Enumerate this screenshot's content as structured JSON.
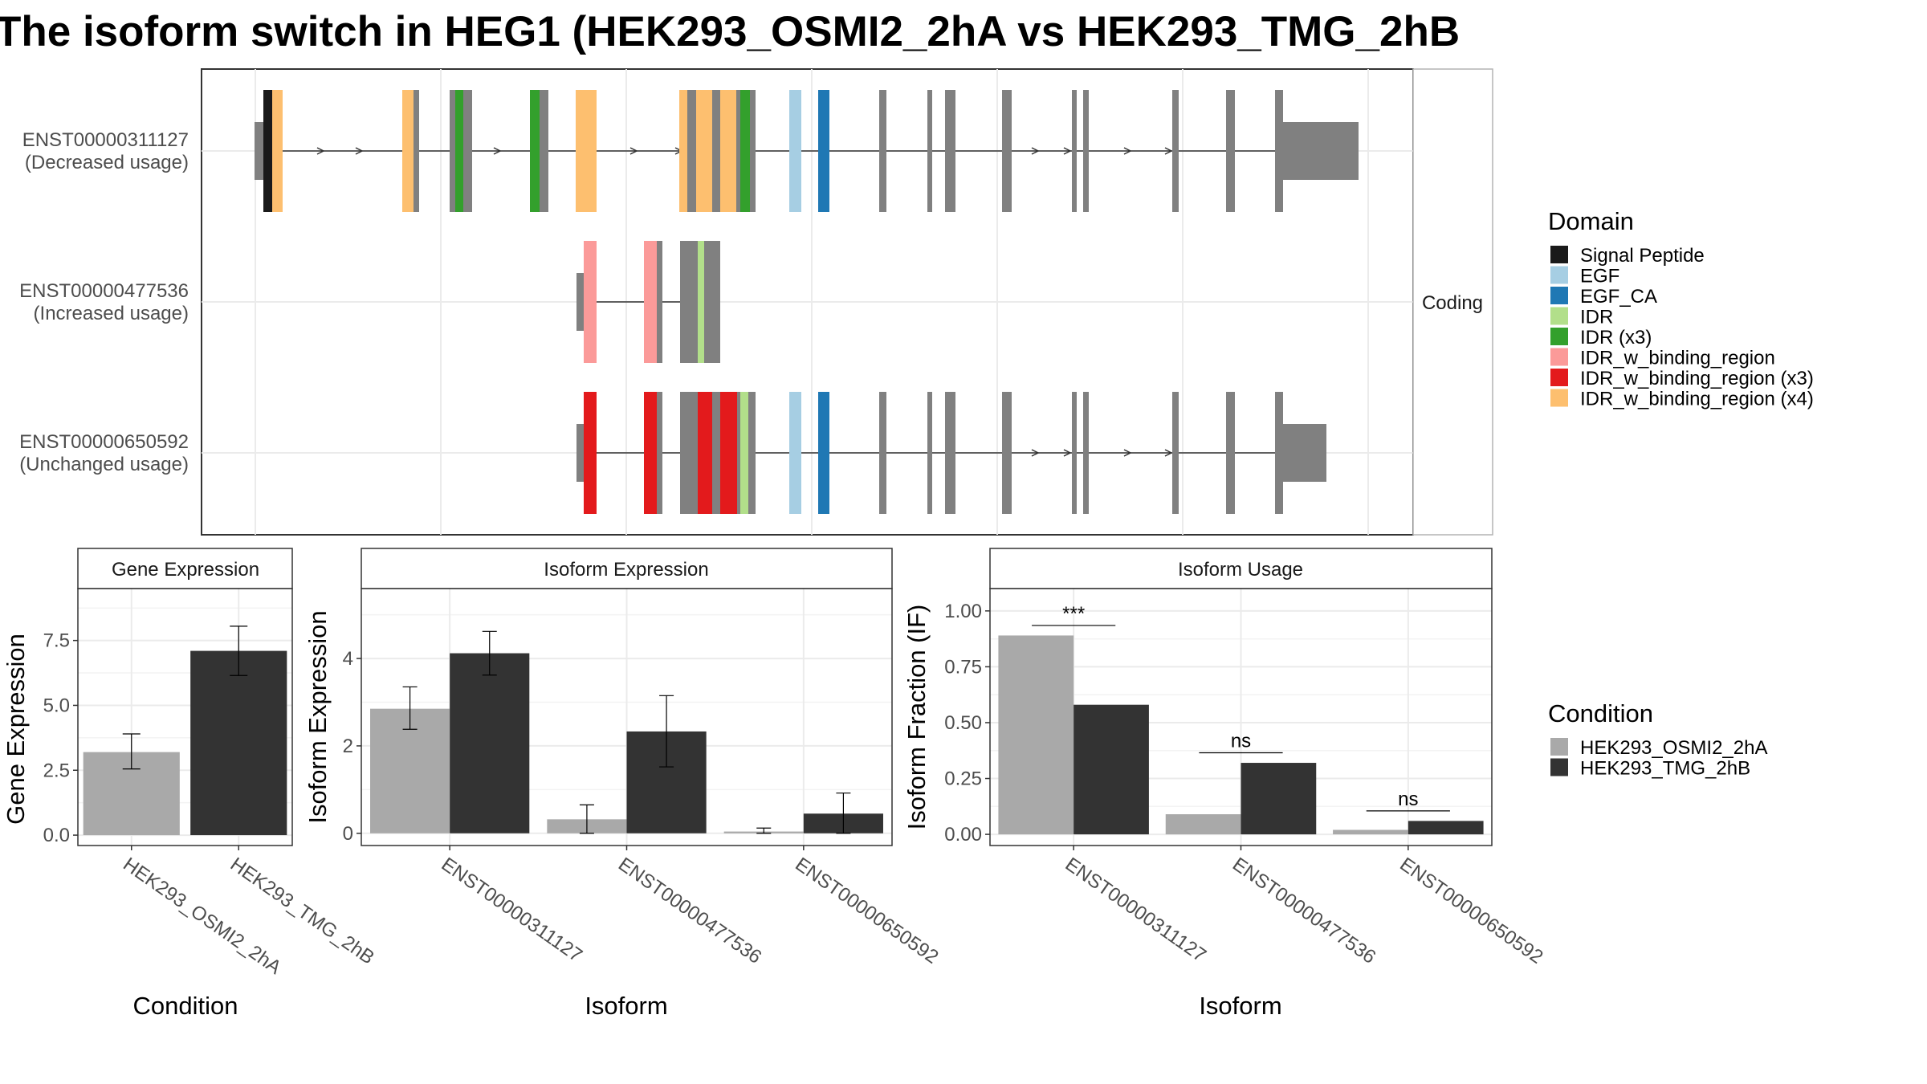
{
  "title": "The isoform switch in HEG1 (HEK293_OSMI2_2hA vs HEK293_TMG_2hB",
  "colors": {
    "cond_a": "#a9a9a9",
    "cond_b": "#333333",
    "exon_default": "#808080",
    "panel_border": "#333333",
    "grid": "#ebebeb",
    "strip_fill": "#ffffff"
  },
  "chart_data": [
    {
      "type": "transcript_structure",
      "strip_label": "Coding",
      "transcripts": [
        {
          "id": "ENST00000311127",
          "usage": "(Decreased usage)"
        },
        {
          "id": "ENST00000477536",
          "usage": "(Increased usage)"
        },
        {
          "id": "ENST00000650592",
          "usage": "(Unchanged usage)"
        }
      ],
      "legend": {
        "title": "Domain",
        "entries": [
          {
            "label": "Signal Peptide",
            "color": "#1a1a1a"
          },
          {
            "label": "EGF",
            "color": "#a6cee3"
          },
          {
            "label": "EGF_CA",
            "color": "#1f78b4"
          },
          {
            "label": "IDR",
            "color": "#b2df8a"
          },
          {
            "label": "IDR (x3)",
            "color": "#33a02c"
          },
          {
            "label": "IDR_w_binding_region",
            "color": "#fb9a99"
          },
          {
            "label": "IDR_w_binding_region (x3)",
            "color": "#e31a1c"
          },
          {
            "label": "IDR_w_binding_region (x4)",
            "color": "#fdbf6f"
          }
        ]
      }
    },
    {
      "type": "bar",
      "strip_label": "Gene Expression",
      "xlabel": "Condition",
      "ylabel": "Gene Expression",
      "categories": [
        "HEK293_OSMI2_2hA",
        "HEK293_TMG_2hB"
      ],
      "values": [
        3.2,
        7.1
      ],
      "errors_low": [
        2.55,
        6.15
      ],
      "errors_high": [
        3.9,
        8.05
      ],
      "ylim": [
        -0.4,
        9.5
      ],
      "yticks": [
        "0.0",
        "2.5",
        "5.0",
        "7.5"
      ]
    },
    {
      "type": "bar",
      "strip_label": "Isoform Expression",
      "xlabel": "Isoform",
      "ylabel": "Isoform Expression",
      "categories": [
        "ENST00000311127",
        "ENST00000477536",
        "ENST00000650592"
      ],
      "series": [
        {
          "name": "HEK293_OSMI2_2hA",
          "values": [
            2.85,
            0.32,
            0.04
          ],
          "err_low": [
            2.38,
            0.0,
            0.0
          ],
          "err_high": [
            3.35,
            0.65,
            0.12
          ]
        },
        {
          "name": "HEK293_TMG_2hB",
          "values": [
            4.12,
            2.33,
            0.45
          ],
          "err_low": [
            3.62,
            1.52,
            0.0
          ],
          "err_high": [
            4.62,
            3.15,
            0.92
          ]
        }
      ],
      "ylim": [
        -0.28,
        5.6
      ],
      "yticks": [
        "0",
        "2",
        "4"
      ]
    },
    {
      "type": "bar",
      "strip_label": "Isoform Usage",
      "xlabel": "Isoform",
      "ylabel": "Isoform Fraction (IF)",
      "categories": [
        "ENST00000311127",
        "ENST00000477536",
        "ENST00000650592"
      ],
      "series": [
        {
          "name": "HEK293_OSMI2_2hA",
          "values": [
            0.89,
            0.09,
            0.02
          ]
        },
        {
          "name": "HEK293_TMG_2hB",
          "values": [
            0.58,
            0.32,
            0.06
          ]
        }
      ],
      "significance": [
        "***",
        "ns",
        "ns"
      ],
      "ylim": [
        -0.05,
        1.1
      ],
      "yticks": [
        "0.00",
        "0.25",
        "0.50",
        "0.75",
        "1.00"
      ]
    }
  ],
  "condition_legend": {
    "title": "Condition",
    "entries": [
      {
        "label": "HEK293_OSMI2_2hA",
        "color": "#a9a9a9"
      },
      {
        "label": "HEK293_TMG_2hB",
        "color": "#333333"
      }
    ]
  }
}
